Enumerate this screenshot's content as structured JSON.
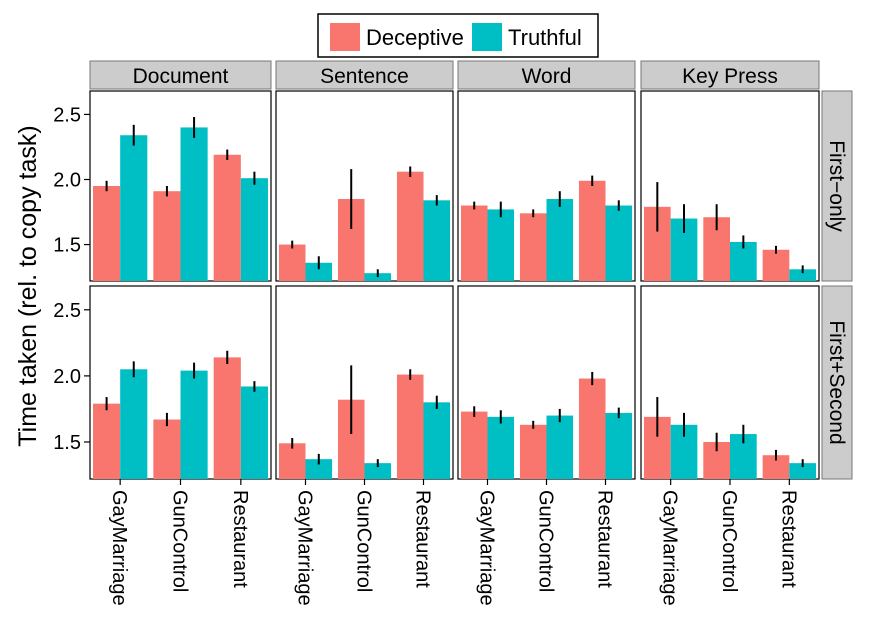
{
  "chart_data": {
    "type": "bar",
    "ylabel": "Time taken (rel. to copy task)",
    "legend": {
      "position": "top",
      "items": [
        {
          "name": "Deceptive",
          "color": "#F8766D"
        },
        {
          "name": "Truthful",
          "color": "#00BFC4"
        }
      ]
    },
    "columns": [
      "Document",
      "Sentence",
      "Word",
      "Key Press"
    ],
    "rows": [
      "First−only",
      "First+Second"
    ],
    "categories": [
      "GayMarriage",
      "GunControl",
      "Restaurant"
    ],
    "y_ticks": [
      "1.5",
      "2.0",
      "2.5"
    ],
    "ylim": [
      1.22,
      2.68
    ],
    "grid": false,
    "panels": [
      {
        "column": "Document",
        "row": "First−only",
        "deceptive": [
          1.95,
          1.91,
          2.19
        ],
        "deceptive_err": [
          0.04,
          0.04,
          0.04
        ],
        "truthful": [
          2.34,
          2.4,
          2.01
        ],
        "truthful_err": [
          0.08,
          0.08,
          0.05
        ]
      },
      {
        "column": "Sentence",
        "row": "First−only",
        "deceptive": [
          1.5,
          1.85,
          2.06
        ],
        "deceptive_err": [
          0.03,
          0.23,
          0.04
        ],
        "truthful": [
          1.36,
          1.28,
          1.84
        ],
        "truthful_err": [
          0.05,
          0.03,
          0.04
        ]
      },
      {
        "column": "Word",
        "row": "First−only",
        "deceptive": [
          1.8,
          1.74,
          1.99
        ],
        "deceptive_err": [
          0.03,
          0.03,
          0.04
        ],
        "truthful": [
          1.77,
          1.85,
          1.8
        ],
        "truthful_err": [
          0.06,
          0.06,
          0.04
        ]
      },
      {
        "column": "Key Press",
        "row": "First−only",
        "deceptive": [
          1.79,
          1.71,
          1.46
        ],
        "deceptive_err": [
          0.19,
          0.1,
          0.03
        ],
        "truthful": [
          1.7,
          1.52,
          1.31
        ],
        "truthful_err": [
          0.11,
          0.05,
          0.03
        ]
      },
      {
        "column": "Document",
        "row": "First+Second",
        "deceptive": [
          1.79,
          1.67,
          2.14
        ],
        "deceptive_err": [
          0.05,
          0.05,
          0.05
        ],
        "truthful": [
          2.05,
          2.04,
          1.92
        ],
        "truthful_err": [
          0.06,
          0.06,
          0.04
        ]
      },
      {
        "column": "Sentence",
        "row": "First+Second",
        "deceptive": [
          1.49,
          1.82,
          2.01
        ],
        "deceptive_err": [
          0.04,
          0.26,
          0.04
        ],
        "truthful": [
          1.37,
          1.34,
          1.8
        ],
        "truthful_err": [
          0.04,
          0.03,
          0.05
        ]
      },
      {
        "column": "Word",
        "row": "First+Second",
        "deceptive": [
          1.73,
          1.63,
          1.98
        ],
        "deceptive_err": [
          0.04,
          0.03,
          0.05
        ],
        "truthful": [
          1.69,
          1.7,
          1.72
        ],
        "truthful_err": [
          0.05,
          0.05,
          0.04
        ]
      },
      {
        "column": "Key Press",
        "row": "First+Second",
        "deceptive": [
          1.69,
          1.5,
          1.4
        ],
        "deceptive_err": [
          0.15,
          0.07,
          0.04
        ],
        "truthful": [
          1.63,
          1.56,
          1.34
        ],
        "truthful_err": [
          0.09,
          0.07,
          0.03
        ]
      }
    ]
  }
}
